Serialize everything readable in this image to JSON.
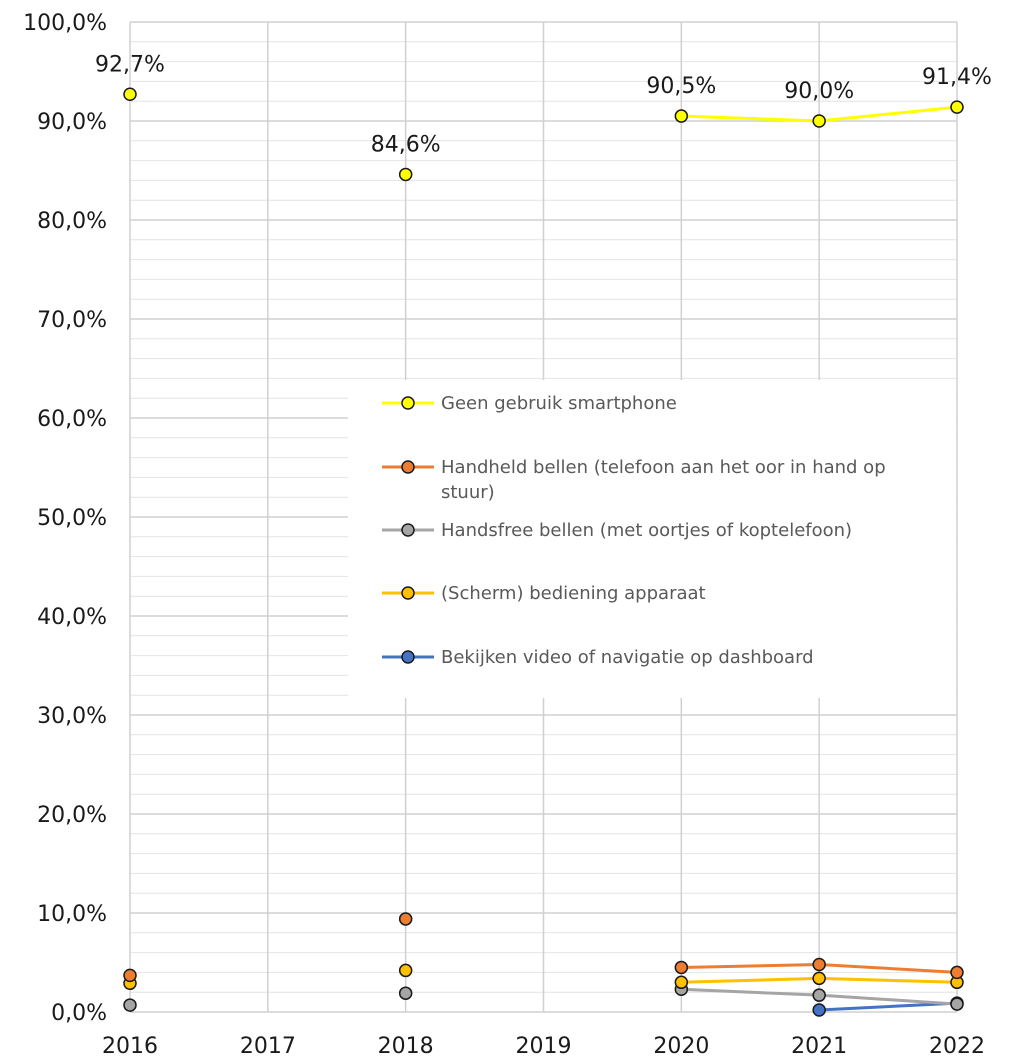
{
  "chart_data": {
    "type": "line",
    "x": [
      2016,
      2017,
      2018,
      2019,
      2020,
      2021,
      2022
    ],
    "x_tick_labels": [
      "2016",
      "2017",
      "2018",
      "2019",
      "2020",
      "2021",
      "2022"
    ],
    "y_tick_labels": [
      "0,0%",
      "10,0%",
      "20,0%",
      "30,0%",
      "40,0%",
      "50,0%",
      "60,0%",
      "70,0%",
      "80,0%",
      "90,0%",
      "100,0%"
    ],
    "ylim": [
      0,
      100
    ],
    "xlim": [
      2016,
      2022
    ],
    "grid": true,
    "minor_grid": true,
    "legend_position": "center-right",
    "title": "",
    "xlabel": "",
    "ylabel": "",
    "series": [
      {
        "name": "Geen gebruik smartphone",
        "color": "#FFFF00",
        "values": [
          92.7,
          null,
          84.6,
          null,
          90.5,
          90.0,
          91.4
        ],
        "data_labels": [
          "92,7%",
          null,
          "84,6%",
          null,
          "90,5%",
          "90,0%",
          "91,4%"
        ]
      },
      {
        "name": "Handheld bellen (telefoon aan het oor in hand op stuur)",
        "legend_lines": [
          "Handheld bellen (telefoon aan het oor in hand op",
          "stuur)"
        ],
        "color": "#ED7D31",
        "values": [
          3.7,
          null,
          9.4,
          null,
          4.5,
          4.8,
          4.0
        ]
      },
      {
        "name": "Handsfree bellen (met oortjes of koptelefoon)",
        "color": "#A5A5A5",
        "values": [
          0.7,
          null,
          1.9,
          null,
          2.3,
          1.7,
          0.8
        ]
      },
      {
        "name": "(Scherm) bediening apparaat",
        "color": "#FFC000",
        "values": [
          2.9,
          null,
          4.2,
          null,
          3.0,
          3.4,
          3.0
        ]
      },
      {
        "name": "Bekijken video of navigatie op dashboard",
        "color": "#4472C4",
        "values": [
          null,
          null,
          null,
          null,
          null,
          0.2,
          0.9
        ]
      }
    ]
  }
}
